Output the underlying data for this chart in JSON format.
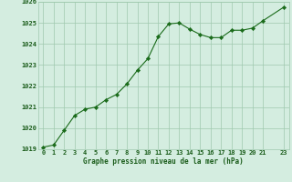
{
  "x": [
    0,
    1,
    2,
    3,
    4,
    5,
    6,
    7,
    8,
    9,
    10,
    11,
    12,
    13,
    14,
    15,
    16,
    17,
    18,
    19,
    20,
    21,
    23
  ],
  "y": [
    1019.1,
    1019.2,
    1019.9,
    1020.6,
    1020.9,
    1021.0,
    1021.35,
    1021.6,
    1022.1,
    1022.75,
    1023.3,
    1024.35,
    1024.95,
    1025.0,
    1024.7,
    1024.45,
    1024.3,
    1024.3,
    1024.65,
    1024.65,
    1024.75,
    1025.1,
    1025.75
  ],
  "xlabel": "Graphe pression niveau de la mer (hPa)",
  "line_color": "#1a6b1a",
  "marker_color": "#1a6b1a",
  "bg_color": "#d4ede0",
  "grid_color": "#9fc9ae",
  "text_color": "#1a5c1a",
  "ylim": [
    1019,
    1026
  ],
  "xlim_left": -0.5,
  "xlim_right": 23.5,
  "yticks": [
    1019,
    1020,
    1021,
    1022,
    1023,
    1024,
    1025,
    1026
  ],
  "xticks": [
    0,
    1,
    2,
    3,
    4,
    5,
    6,
    7,
    8,
    9,
    10,
    11,
    12,
    13,
    14,
    15,
    16,
    17,
    18,
    19,
    20,
    21,
    23
  ],
  "tick_fontsize": 5.0,
  "xlabel_fontsize": 5.5
}
